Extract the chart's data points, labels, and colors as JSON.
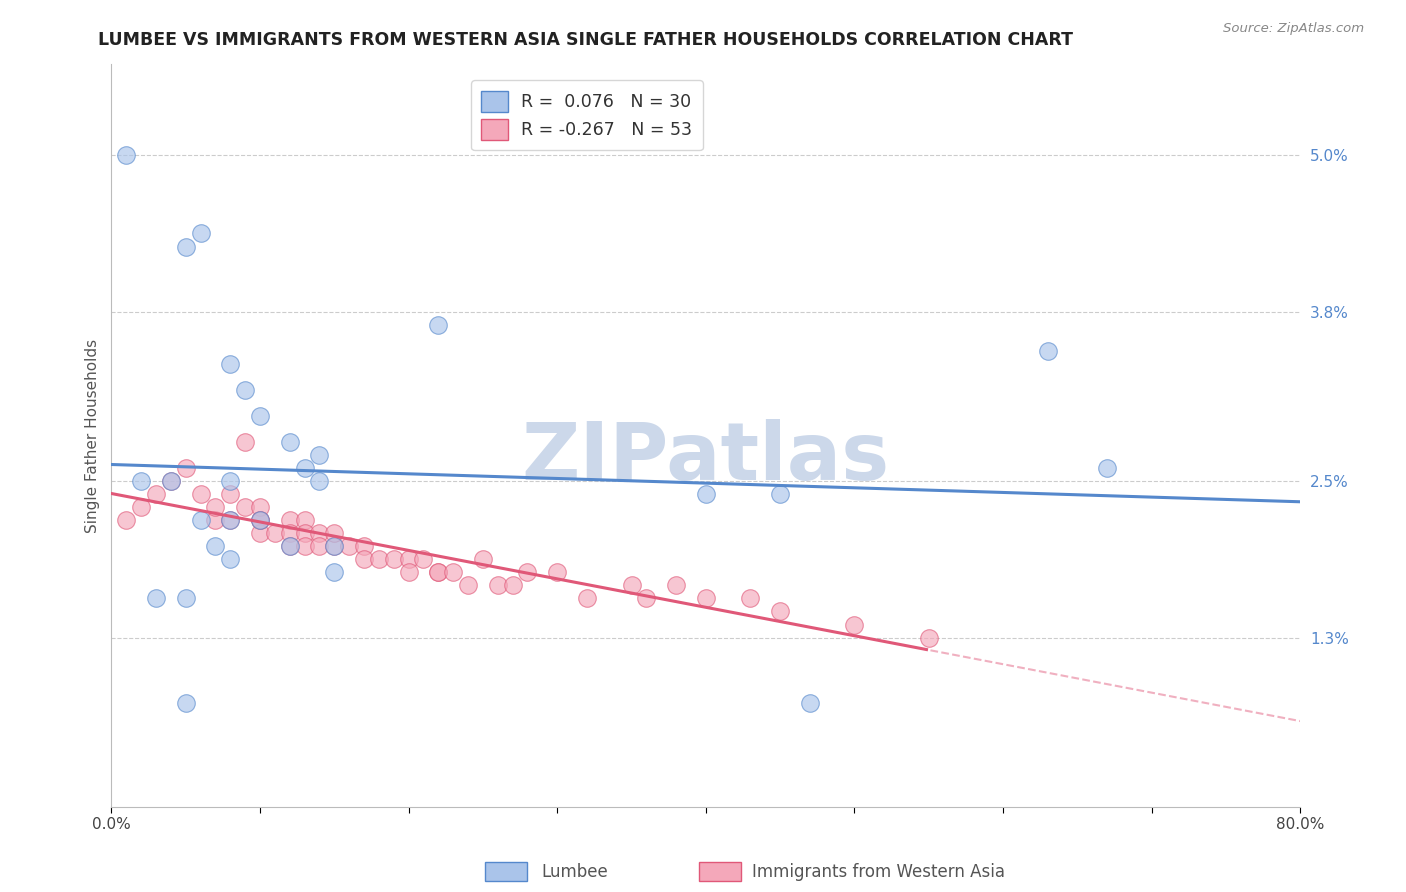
{
  "title": "LUMBEE VS IMMIGRANTS FROM WESTERN ASIA SINGLE FATHER HOUSEHOLDS CORRELATION CHART",
  "source": "Source: ZipAtlas.com",
  "ylabel": "Single Father Households",
  "xlim": [
    0.0,
    0.8
  ],
  "ylim": [
    0.0,
    0.057
  ],
  "yticks": [
    0.013,
    0.025,
    0.038,
    0.05
  ],
  "ytick_labels": [
    "1.3%",
    "2.5%",
    "3.8%",
    "5.0%"
  ],
  "xticks": [
    0.0,
    0.1,
    0.2,
    0.3,
    0.4,
    0.5,
    0.6,
    0.7,
    0.8
  ],
  "xtick_labels": [
    "0.0%",
    "",
    "",
    "",
    "",
    "",
    "",
    "",
    "80.0%"
  ],
  "lumbee_R": 0.076,
  "lumbee_N": 30,
  "immigrants_R": -0.267,
  "immigrants_N": 53,
  "lumbee_color": "#aac4ea",
  "immigrants_color": "#f4a8ba",
  "lumbee_line_color": "#5588cc",
  "immigrants_line_color": "#e05878",
  "immigrants_dash_color": "#f0b0c0",
  "background_color": "#ffffff",
  "grid_color": "#cccccc",
  "legend_label_1": "Lumbee",
  "legend_label_2": "Immigrants from Western Asia",
  "title_fontsize": 12.5,
  "axis_fontsize": 11,
  "tick_fontsize": 11,
  "lumbee_x": [
    0.01,
    0.05,
    0.08,
    0.09,
    0.1,
    0.12,
    0.13,
    0.14,
    0.14,
    0.22,
    0.02,
    0.04,
    0.63,
    0.67,
    0.4,
    0.08,
    0.03,
    0.05,
    0.45,
    0.06,
    0.08,
    0.1,
    0.08,
    0.12,
    0.15,
    0.15,
    0.05,
    0.47,
    0.06,
    0.07
  ],
  "lumbee_y": [
    0.05,
    0.043,
    0.034,
    0.032,
    0.03,
    0.028,
    0.026,
    0.025,
    0.027,
    0.037,
    0.025,
    0.025,
    0.035,
    0.026,
    0.024,
    0.025,
    0.016,
    0.016,
    0.024,
    0.022,
    0.022,
    0.022,
    0.019,
    0.02,
    0.02,
    0.018,
    0.008,
    0.008,
    0.044,
    0.02
  ],
  "immigrants_x": [
    0.01,
    0.02,
    0.03,
    0.04,
    0.05,
    0.06,
    0.07,
    0.07,
    0.08,
    0.08,
    0.09,
    0.09,
    0.1,
    0.1,
    0.1,
    0.1,
    0.11,
    0.12,
    0.12,
    0.12,
    0.13,
    0.13,
    0.13,
    0.14,
    0.14,
    0.15,
    0.15,
    0.16,
    0.17,
    0.17,
    0.18,
    0.19,
    0.2,
    0.2,
    0.21,
    0.22,
    0.22,
    0.23,
    0.24,
    0.25,
    0.26,
    0.27,
    0.28,
    0.3,
    0.32,
    0.35,
    0.36,
    0.38,
    0.4,
    0.43,
    0.45,
    0.5,
    0.55
  ],
  "immigrants_y": [
    0.022,
    0.023,
    0.024,
    0.025,
    0.026,
    0.024,
    0.022,
    0.023,
    0.022,
    0.024,
    0.023,
    0.028,
    0.022,
    0.023,
    0.021,
    0.022,
    0.021,
    0.022,
    0.021,
    0.02,
    0.022,
    0.021,
    0.02,
    0.021,
    0.02,
    0.02,
    0.021,
    0.02,
    0.02,
    0.019,
    0.019,
    0.019,
    0.019,
    0.018,
    0.019,
    0.018,
    0.018,
    0.018,
    0.017,
    0.019,
    0.017,
    0.017,
    0.018,
    0.018,
    0.016,
    0.017,
    0.016,
    0.017,
    0.016,
    0.016,
    0.015,
    0.014,
    0.013
  ],
  "watermark": "ZIPatlas",
  "watermark_color": "#ccd8ea"
}
